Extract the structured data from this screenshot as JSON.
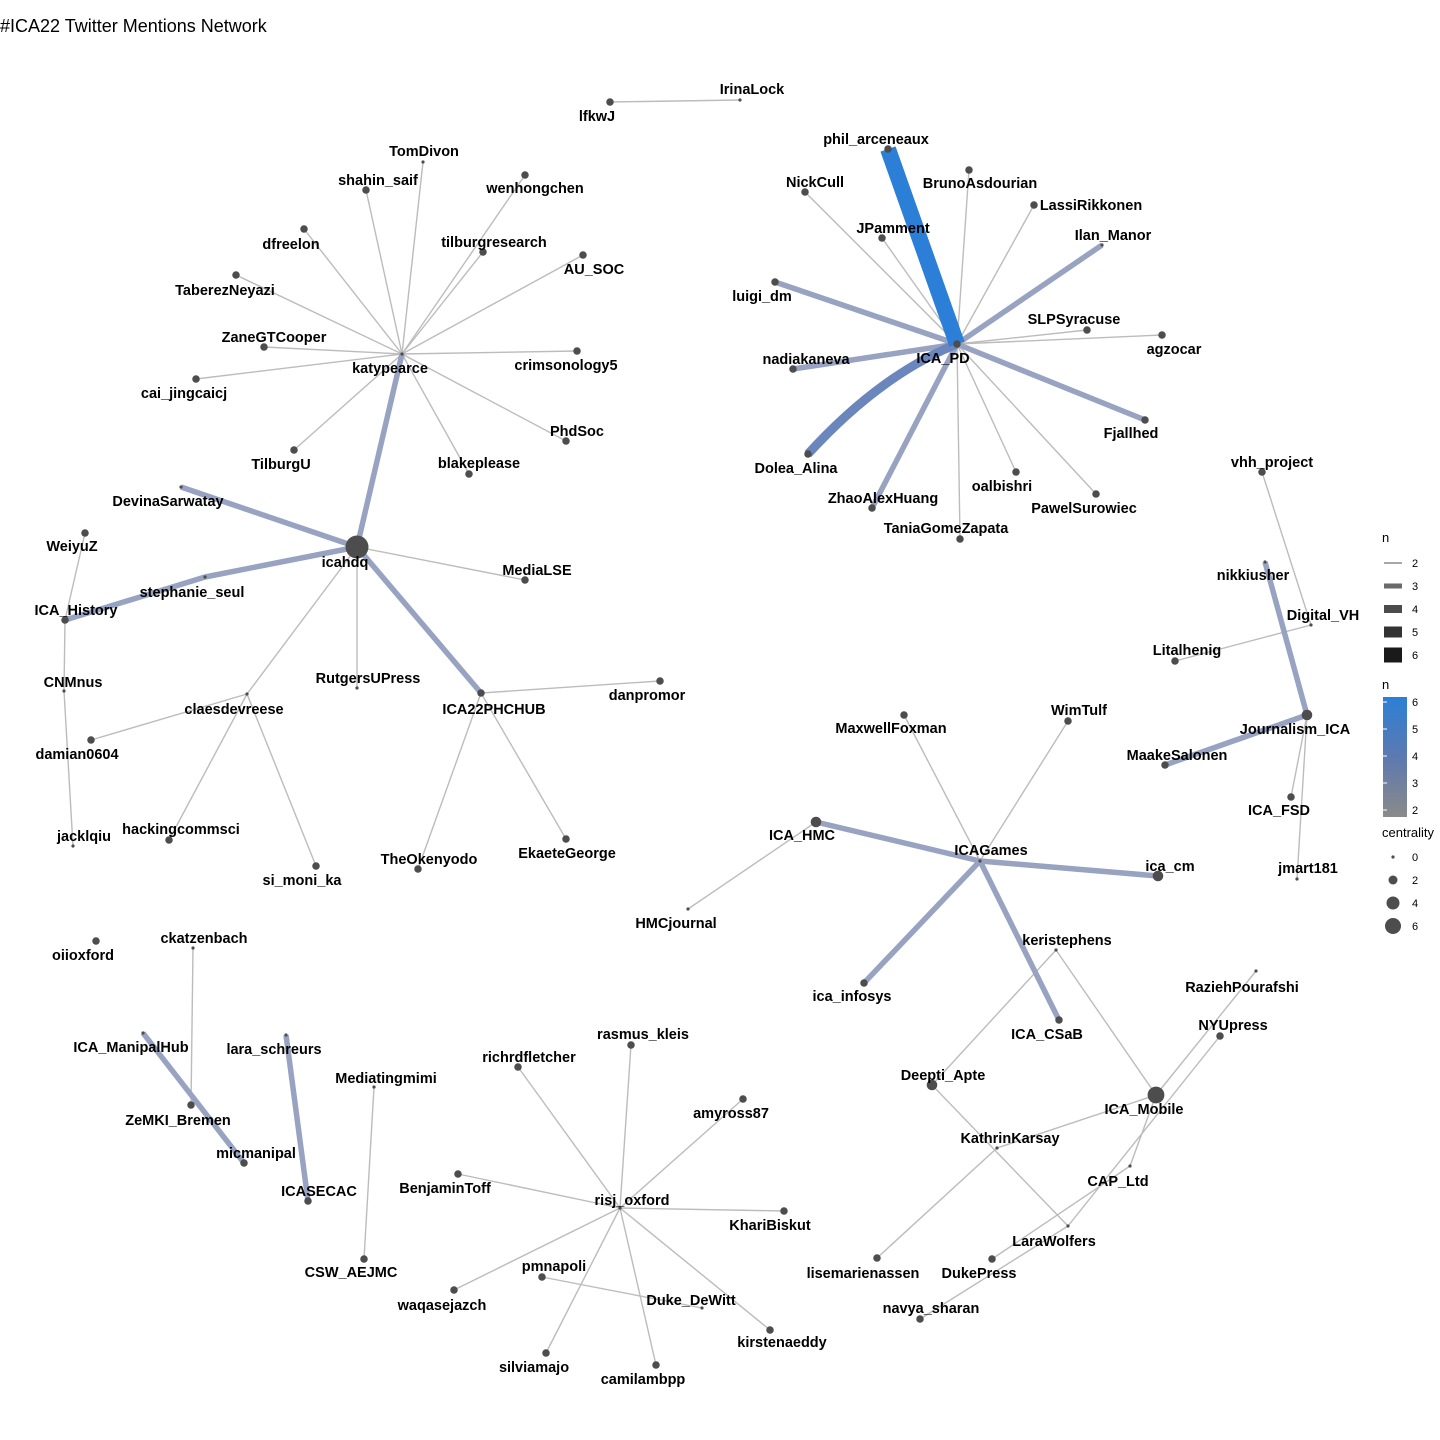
{
  "title": "#ICA22 Twitter Mentions Network",
  "colors": {
    "edge_low": "#bbbbbb",
    "edge_high": "#2c7fd6",
    "node": "#4d4d4d",
    "label": "#000000"
  },
  "legend": {
    "width_title": "n",
    "width_levels": [
      "2",
      "3",
      "4",
      "5",
      "6"
    ],
    "color_title": "n",
    "color_ticks": [
      "6",
      "5",
      "4",
      "3",
      "2"
    ],
    "size_title": "centrality",
    "size_levels": [
      "0",
      "2",
      "4",
      "6"
    ]
  },
  "nodes": [
    {
      "id": "IrinaLock",
      "label": "IrinaLock",
      "c": 0
    },
    {
      "id": "lfkwJ",
      "label": "lfkwJ",
      "c": 1
    },
    {
      "id": "katypearce",
      "label": "katypearce",
      "c": 0
    },
    {
      "id": "TomDivon",
      "label": "TomDivon",
      "c": 0
    },
    {
      "id": "shahin_saif",
      "label": "shahin_saif",
      "c": 1
    },
    {
      "id": "wenhongchen",
      "label": "wenhongchen",
      "c": 1
    },
    {
      "id": "dfreelon",
      "label": "dfreelon",
      "c": 1
    },
    {
      "id": "tilburgresearch",
      "label": "tilburgresearch",
      "c": 1
    },
    {
      "id": "AU_SOC",
      "label": "AU_SOC",
      "c": 1
    },
    {
      "id": "TaberezNeyazi",
      "label": "TaberezNeyazi",
      "c": 1
    },
    {
      "id": "ZaneGTCooper",
      "label": "ZaneGTCooper",
      "c": 1
    },
    {
      "id": "crimsonology5",
      "label": "crimsonology5",
      "c": 1
    },
    {
      "id": "cai_jingcaicj",
      "label": "cai_jingcaicj",
      "c": 1
    },
    {
      "id": "PhdSoc",
      "label": "PhdSoc",
      "c": 1
    },
    {
      "id": "TilburgU",
      "label": "TilburgU",
      "c": 1
    },
    {
      "id": "blakeplease",
      "label": "blakeplease",
      "c": 1
    },
    {
      "id": "icahdq",
      "label": "icahdq",
      "c": 6
    },
    {
      "id": "DevinaSarwatay",
      "label": "DevinaSarwatay",
      "c": 0
    },
    {
      "id": "MediaLSE",
      "label": "MediaLSE",
      "c": 1
    },
    {
      "id": "stephanie_seul",
      "label": "stephanie_seul",
      "c": 0
    },
    {
      "id": "WeiyuZ",
      "label": "WeiyuZ",
      "c": 1
    },
    {
      "id": "ICA_History",
      "label": "ICA_History",
      "c": 1
    },
    {
      "id": "CNMnus",
      "label": "CNMnus",
      "c": 0
    },
    {
      "id": "RutgersUPress",
      "label": "RutgersUPress",
      "c": 0
    },
    {
      "id": "ICA22PHCHUB",
      "label": "ICA22PHCHUB",
      "c": 1
    },
    {
      "id": "danpromor",
      "label": "danpromor",
      "c": 1
    },
    {
      "id": "claesdevreese",
      "label": "claesdevreese",
      "c": 0
    },
    {
      "id": "damian0604",
      "label": "damian0604",
      "c": 1
    },
    {
      "id": "jacklqiu",
      "label": "jacklqiu",
      "c": 0
    },
    {
      "id": "hackingcommsci",
      "label": "hackingcommsci",
      "c": 1
    },
    {
      "id": "si_moni_ka",
      "label": "si_moni_ka",
      "c": 1
    },
    {
      "id": "TheOkenyodo",
      "label": "TheOkenyodo",
      "c": 1
    },
    {
      "id": "EkaeteGeorge",
      "label": "EkaeteGeorge",
      "c": 1
    },
    {
      "id": "ICA_PD",
      "label": "ICA_PD",
      "c": 1
    },
    {
      "id": "phil_arceneaux",
      "label": "phil_arceneaux",
      "c": 1
    },
    {
      "id": "NickCull",
      "label": "NickCull",
      "c": 1
    },
    {
      "id": "BrunoAsdourian",
      "label": "BrunoAsdourian",
      "c": 1
    },
    {
      "id": "LassiRikkonen",
      "label": "LassiRikkonen",
      "c": 1
    },
    {
      "id": "JPamment",
      "label": "JPamment",
      "c": 1
    },
    {
      "id": "Ilan_Manor",
      "label": "Ilan_Manor",
      "c": 0
    },
    {
      "id": "luigi_dm",
      "label": "luigi_dm",
      "c": 1
    },
    {
      "id": "SLPSyracuse",
      "label": "SLPSyracuse",
      "c": 1
    },
    {
      "id": "agzocar",
      "label": "agzocar",
      "c": 1
    },
    {
      "id": "nadiakaneva",
      "label": "nadiakaneva",
      "c": 1
    },
    {
      "id": "Fjallhed",
      "label": "Fjallhed",
      "c": 1
    },
    {
      "id": "Dolea_Alina",
      "label": "Dolea_Alina",
      "c": 1
    },
    {
      "id": "oalbishri",
      "label": "oalbishri",
      "c": 1
    },
    {
      "id": "ZhaoAlexHuang",
      "label": "ZhaoAlexHuang",
      "c": 1
    },
    {
      "id": "PawelSurowiec",
      "label": "PawelSurowiec",
      "c": 1
    },
    {
      "id": "TaniaGomeZapata",
      "label": "TaniaGomeZapata",
      "c": 1
    },
    {
      "id": "vhh_project",
      "label": "vhh_project",
      "c": 1
    },
    {
      "id": "nikkiusher",
      "label": "nikkiusher",
      "c": 0
    },
    {
      "id": "Digital_VH",
      "label": "Digital_VH",
      "c": 0
    },
    {
      "id": "Litalhenig",
      "label": "Litalhenig",
      "c": 1
    },
    {
      "id": "Journalism_ICA",
      "label": "Journalism_ICA",
      "c": 2
    },
    {
      "id": "MaakeSalonen",
      "label": "MaakeSalonen",
      "c": 1
    },
    {
      "id": "ICA_FSD",
      "label": "ICA_FSD",
      "c": 1
    },
    {
      "id": "jmart181",
      "label": "jmart181",
      "c": 0
    },
    {
      "id": "MaxwellFoxman",
      "label": "MaxwellFoxman",
      "c": 1
    },
    {
      "id": "WimTulf",
      "label": "WimTulf",
      "c": 1
    },
    {
      "id": "ICA_HMC",
      "label": "ICA_HMC",
      "c": 2
    },
    {
      "id": "ICAGames",
      "label": "ICAGames",
      "c": 0
    },
    {
      "id": "ica_cm",
      "label": "ica_cm",
      "c": 2
    },
    {
      "id": "HMCjournal",
      "label": "HMCjournal",
      "c": 0
    },
    {
      "id": "keristephens",
      "label": "keristephens",
      "c": 0
    },
    {
      "id": "ica_infosys",
      "label": "ica_infosys",
      "c": 1
    },
    {
      "id": "ICA_CSaB",
      "label": "ICA_CSaB",
      "c": 1
    },
    {
      "id": "RaziehPourafshi",
      "label": "RaziehPourafshi",
      "c": 0
    },
    {
      "id": "NYUpress",
      "label": "NYUpress",
      "c": 1
    },
    {
      "id": "Deepti_Apte",
      "label": "Deepti_Apte",
      "c": 2
    },
    {
      "id": "ICA_Mobile",
      "label": "ICA_Mobile",
      "c": 4
    },
    {
      "id": "KathrinKarsay",
      "label": "KathrinKarsay",
      "c": 0
    },
    {
      "id": "CAP_Ltd",
      "label": "CAP_Ltd",
      "c": 0
    },
    {
      "id": "LaraWolfers",
      "label": "LaraWolfers",
      "c": 0
    },
    {
      "id": "lisemarienassen",
      "label": "lisemarienassen",
      "c": 1
    },
    {
      "id": "DukePress",
      "label": "DukePress",
      "c": 1
    },
    {
      "id": "navya_sharan",
      "label": "navya_sharan",
      "c": 1
    },
    {
      "id": "oiioxford",
      "label": "oiioxford",
      "c": 1
    },
    {
      "id": "ckatzenbach",
      "label": "ckatzenbach",
      "c": 0
    },
    {
      "id": "ICA_ManipalHub",
      "label": "ICA_ManipalHub",
      "c": 0
    },
    {
      "id": "ZeMKI_Bremen",
      "label": "ZeMKI_Bremen",
      "c": 1
    },
    {
      "id": "micmanipal",
      "label": "micmanipal",
      "c": 1
    },
    {
      "id": "lara_schreurs",
      "label": "lara_schreurs",
      "c": 0
    },
    {
      "id": "ICASECAC",
      "label": "ICASECAC",
      "c": 1
    },
    {
      "id": "Mediatingmimi",
      "label": "Mediatingmimi",
      "c": 0
    },
    {
      "id": "CSW_AEJMC",
      "label": "CSW_AEJMC",
      "c": 1
    },
    {
      "id": "rasmus_kleis",
      "label": "rasmus_kleis",
      "c": 1
    },
    {
      "id": "richrdfletcher",
      "label": "richrdfletcher",
      "c": 1
    },
    {
      "id": "amyross87",
      "label": "amyross87",
      "c": 1
    },
    {
      "id": "BenjaminToff",
      "label": "BenjaminToff",
      "c": 1
    },
    {
      "id": "risj_oxford",
      "label": "risj_oxford",
      "c": 0
    },
    {
      "id": "KhariBiskut",
      "label": "KhariBiskut",
      "c": 1
    },
    {
      "id": "pmnapoli",
      "label": "pmnapoli",
      "c": 1
    },
    {
      "id": "Duke_DeWitt",
      "label": "Duke_DeWitt",
      "c": 0
    },
    {
      "id": "waqasejazch",
      "label": "waqasejazch",
      "c": 1
    },
    {
      "id": "kirstenaeddy",
      "label": "kirstenaeddy",
      "c": 1
    },
    {
      "id": "silviamajo",
      "label": "silviamajo",
      "c": 1
    },
    {
      "id": "camilambpp",
      "label": "camilambpp",
      "c": 1
    }
  ],
  "edges": [
    {
      "s": "lfkwJ",
      "t": "IrinaLock",
      "n": 2
    },
    {
      "s": "katypearce",
      "t": "TomDivon",
      "n": 2
    },
    {
      "s": "katypearce",
      "t": "shahin_saif",
      "n": 2
    },
    {
      "s": "katypearce",
      "t": "wenhongchen",
      "n": 2
    },
    {
      "s": "katypearce",
      "t": "dfreelon",
      "n": 2
    },
    {
      "s": "katypearce",
      "t": "tilburgresearch",
      "n": 2
    },
    {
      "s": "katypearce",
      "t": "AU_SOC",
      "n": 2
    },
    {
      "s": "katypearce",
      "t": "TaberezNeyazi",
      "n": 2
    },
    {
      "s": "katypearce",
      "t": "ZaneGTCooper",
      "n": 2
    },
    {
      "s": "katypearce",
      "t": "crimsonology5",
      "n": 2
    },
    {
      "s": "katypearce",
      "t": "cai_jingcaicj",
      "n": 2
    },
    {
      "s": "katypearce",
      "t": "PhdSoc",
      "n": 2
    },
    {
      "s": "katypearce",
      "t": "TilburgU",
      "n": 2
    },
    {
      "s": "katypearce",
      "t": "blakeplease",
      "n": 2
    },
    {
      "s": "katypearce",
      "t": "icahdq",
      "n": 3
    },
    {
      "s": "icahdq",
      "t": "DevinaSarwatay",
      "n": 3
    },
    {
      "s": "icahdq",
      "t": "MediaLSE",
      "n": 2
    },
    {
      "s": "icahdq",
      "t": "stephanie_seul",
      "n": 3
    },
    {
      "s": "stephanie_seul",
      "t": "ICA_History",
      "n": 3
    },
    {
      "s": "icahdq",
      "t": "RutgersUPress",
      "n": 2
    },
    {
      "s": "icahdq",
      "t": "ICA22PHCHUB",
      "n": 3
    },
    {
      "s": "icahdq",
      "t": "claesdevreese",
      "n": 2
    },
    {
      "s": "ICA22PHCHUB",
      "t": "danpromor",
      "n": 2
    },
    {
      "s": "ICA22PHCHUB",
      "t": "TheOkenyodo",
      "n": 2
    },
    {
      "s": "ICA22PHCHUB",
      "t": "EkaeteGeorge",
      "n": 2
    },
    {
      "s": "claesdevreese",
      "t": "damian0604",
      "n": 2
    },
    {
      "s": "claesdevreese",
      "t": "hackingcommsci",
      "n": 2
    },
    {
      "s": "claesdevreese",
      "t": "si_moni_ka",
      "n": 2
    },
    {
      "s": "WeiyuZ",
      "t": "ICA_History",
      "n": 2
    },
    {
      "s": "ICA_History",
      "t": "CNMnus",
      "n": 2
    },
    {
      "s": "CNMnus",
      "t": "jacklqiu",
      "n": 2
    },
    {
      "s": "ICA_PD",
      "t": "phil_arceneaux",
      "n": 6
    },
    {
      "s": "ICA_PD",
      "t": "Dolea_Alina",
      "n": 4
    },
    {
      "s": "ICA_PD",
      "t": "ZhaoAlexHuang",
      "n": 3
    },
    {
      "s": "ICA_PD",
      "t": "Ilan_Manor",
      "n": 3
    },
    {
      "s": "ICA_PD",
      "t": "luigi_dm",
      "n": 3
    },
    {
      "s": "ICA_PD",
      "t": "nadiakaneva",
      "n": 3
    },
    {
      "s": "ICA_PD",
      "t": "Fjallhed",
      "n": 3
    },
    {
      "s": "ICA_PD",
      "t": "PawelSurowiec",
      "n": 2
    },
    {
      "s": "ICA_PD",
      "t": "NickCull",
      "n": 2
    },
    {
      "s": "ICA_PD",
      "t": "BrunoAsdourian",
      "n": 2
    },
    {
      "s": "ICA_PD",
      "t": "LassiRikkonen",
      "n": 2
    },
    {
      "s": "ICA_PD",
      "t": "JPamment",
      "n": 2
    },
    {
      "s": "ICA_PD",
      "t": "SLPSyracuse",
      "n": 2
    },
    {
      "s": "ICA_PD",
      "t": "agzocar",
      "n": 2
    },
    {
      "s": "ICA_PD",
      "t": "oalbishri",
      "n": 2
    },
    {
      "s": "ICA_PD",
      "t": "TaniaGomeZapata",
      "n": 2
    },
    {
      "s": "vhh_project",
      "t": "Digital_VH",
      "n": 2
    },
    {
      "s": "Digital_VH",
      "t": "Litalhenig",
      "n": 2
    },
    {
      "s": "nikkiusher",
      "t": "Journalism_ICA",
      "n": 3
    },
    {
      "s": "Journalism_ICA",
      "t": "MaakeSalonen",
      "n": 3
    },
    {
      "s": "Journalism_ICA",
      "t": "ICA_FSD",
      "n": 2
    },
    {
      "s": "Journalism_ICA",
      "t": "jmart181",
      "n": 2
    },
    {
      "s": "ICAGames",
      "t": "MaxwellFoxman",
      "n": 2
    },
    {
      "s": "ICAGames",
      "t": "WimTulf",
      "n": 2
    },
    {
      "s": "ICAGames",
      "t": "ICA_HMC",
      "n": 3
    },
    {
      "s": "ICAGames",
      "t": "ica_cm",
      "n": 3
    },
    {
      "s": "ICAGames",
      "t": "ica_infosys",
      "n": 3
    },
    {
      "s": "ICAGames",
      "t": "ICA_CSaB",
      "n": 3
    },
    {
      "s": "ICA_HMC",
      "t": "HMCjournal",
      "n": 2
    },
    {
      "s": "keristephens",
      "t": "Deepti_Apte",
      "n": 2
    },
    {
      "s": "keristephens",
      "t": "ICA_Mobile",
      "n": 2
    },
    {
      "s": "RaziehPourafshi",
      "t": "ICA_Mobile",
      "n": 2
    },
    {
      "s": "NYUpress",
      "t": "LaraWolfers",
      "n": 2
    },
    {
      "s": "ICA_Mobile",
      "t": "KathrinKarsay",
      "n": 2
    },
    {
      "s": "ICA_Mobile",
      "t": "CAP_Ltd",
      "n": 2
    },
    {
      "s": "Deepti_Apte",
      "t": "LaraWolfers",
      "n": 2
    },
    {
      "s": "KathrinKarsay",
      "t": "lisemarienassen",
      "n": 2
    },
    {
      "s": "CAP_Ltd",
      "t": "DukePress",
      "n": 2
    },
    {
      "s": "LaraWolfers",
      "t": "navya_sharan",
      "n": 2
    },
    {
      "s": "ckatzenbach",
      "t": "ZeMKI_Bremen",
      "n": 2
    },
    {
      "s": "ICA_ManipalHub",
      "t": "micmanipal",
      "n": 3
    },
    {
      "s": "lara_schreurs",
      "t": "ICASECAC",
      "n": 3
    },
    {
      "s": "Mediatingmimi",
      "t": "CSW_AEJMC",
      "n": 2
    },
    {
      "s": "risj_oxford",
      "t": "rasmus_kleis",
      "n": 2
    },
    {
      "s": "risj_oxford",
      "t": "richrdfletcher",
      "n": 2
    },
    {
      "s": "risj_oxford",
      "t": "amyross87",
      "n": 2
    },
    {
      "s": "risj_oxford",
      "t": "BenjaminToff",
      "n": 2
    },
    {
      "s": "risj_oxford",
      "t": "KhariBiskut",
      "n": 2
    },
    {
      "s": "risj_oxford",
      "t": "waqasejazch",
      "n": 2
    },
    {
      "s": "risj_oxford",
      "t": "kirstenaeddy",
      "n": 2
    },
    {
      "s": "risj_oxford",
      "t": "silviamajo",
      "n": 2
    },
    {
      "s": "risj_oxford",
      "t": "camilambpp",
      "n": 2
    },
    {
      "s": "pmnapoli",
      "t": "Duke_DeWitt",
      "n": 2
    }
  ]
}
